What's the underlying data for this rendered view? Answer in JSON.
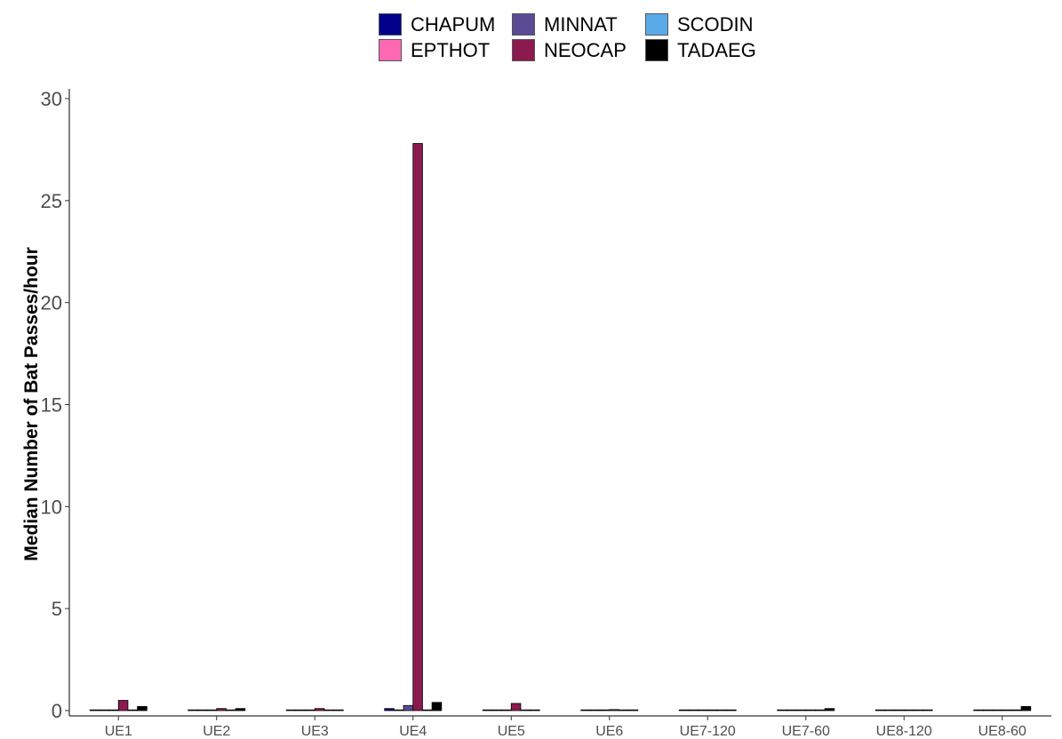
{
  "chart_data": {
    "type": "bar",
    "title": "",
    "xlabel": "",
    "ylabel": "Median Number of Bat Passes/hour",
    "ylim": [
      0,
      30
    ],
    "yticks": [
      0,
      5,
      10,
      15,
      20,
      25,
      30
    ],
    "grid": false,
    "legend_position": "top",
    "categories": [
      "UE1",
      "UE2",
      "UE3",
      "UE4",
      "UE5",
      "UE6",
      "UE7-120",
      "UE7-60",
      "UE8-120",
      "UE8-60"
    ],
    "series": [
      {
        "name": "CHAPUM",
        "color": "#00008B",
        "values": [
          0,
          0,
          0,
          0.1,
          0,
          0,
          0,
          0,
          0,
          0
        ]
      },
      {
        "name": "EPTHOT",
        "color": "#FF69B4",
        "values": [
          0,
          0,
          0,
          0,
          0,
          0,
          0,
          0,
          0,
          0
        ]
      },
      {
        "name": "MINNAT",
        "color": "#5B4A94",
        "values": [
          0,
          0,
          0,
          0.25,
          0,
          0,
          0,
          0,
          0,
          0
        ]
      },
      {
        "name": "NEOCAP",
        "color": "#8B1A4F",
        "values": [
          0.5,
          0.1,
          0.1,
          27.8,
          0.35,
          0.05,
          0,
          0,
          0,
          0
        ]
      },
      {
        "name": "SCODIN",
        "color": "#5BAAE8",
        "values": [
          0,
          0,
          0,
          0,
          0,
          0,
          0,
          0,
          0,
          0
        ]
      },
      {
        "name": "TADAEG",
        "color": "#000000",
        "values": [
          0.2,
          0.1,
          0,
          0.4,
          0,
          0,
          0,
          0.1,
          0,
          0.2
        ]
      }
    ]
  },
  "legend": {
    "items": [
      {
        "label": "CHAPUM",
        "color": "#00008B"
      },
      {
        "label": "MINNAT",
        "color": "#5B4A94"
      },
      {
        "label": "SCODIN",
        "color": "#5BAAE8"
      },
      {
        "label": "EPTHOT",
        "color": "#FF69B4"
      },
      {
        "label": "NEOCAP",
        "color": "#8B1A4F"
      },
      {
        "label": "TADAEG",
        "color": "#000000"
      }
    ]
  }
}
